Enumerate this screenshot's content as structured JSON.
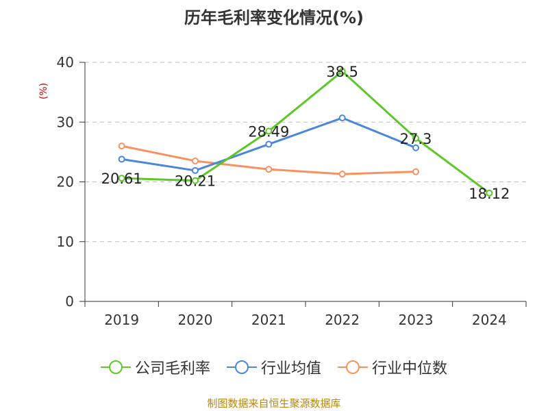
{
  "title": "历年毛利率变化情况(%)",
  "source_text": "制图数据来自恒生聚源数据库",
  "colors": {
    "company": "#5cc727",
    "industry_avg": "#4a86dc",
    "industry_median": "#f79260",
    "unit_label": "#cc0000",
    "source_text": "#b8860b",
    "grid": "#bbbbbb",
    "axis": "#333333"
  },
  "chart_data": {
    "type": "line",
    "title": "历年毛利率变化情况(%)",
    "ylabel": "(%)",
    "xlabel": "",
    "ylim": [
      0,
      40
    ],
    "yticks": [
      0,
      10,
      20,
      30,
      40
    ],
    "categories": [
      "2019",
      "2020",
      "2021",
      "2022",
      "2023",
      "2024"
    ],
    "legend_position": "bottom",
    "series": [
      {
        "name": "公司毛利率",
        "color_key": "company",
        "values": [
          20.61,
          20.21,
          28.49,
          38.5,
          27.3,
          18.12
        ],
        "labels": [
          "20.61",
          "20.21",
          "28.49",
          "38.5",
          "27.3",
          "18.12"
        ]
      },
      {
        "name": "行业均值",
        "color_key": "industry_avg",
        "values": [
          23.8,
          21.9,
          26.3,
          30.7,
          25.7,
          null
        ],
        "labels": []
      },
      {
        "name": "行业中位数",
        "color_key": "industry_median",
        "values": [
          26.0,
          23.5,
          22.1,
          21.3,
          21.7,
          null
        ],
        "labels": []
      }
    ]
  }
}
